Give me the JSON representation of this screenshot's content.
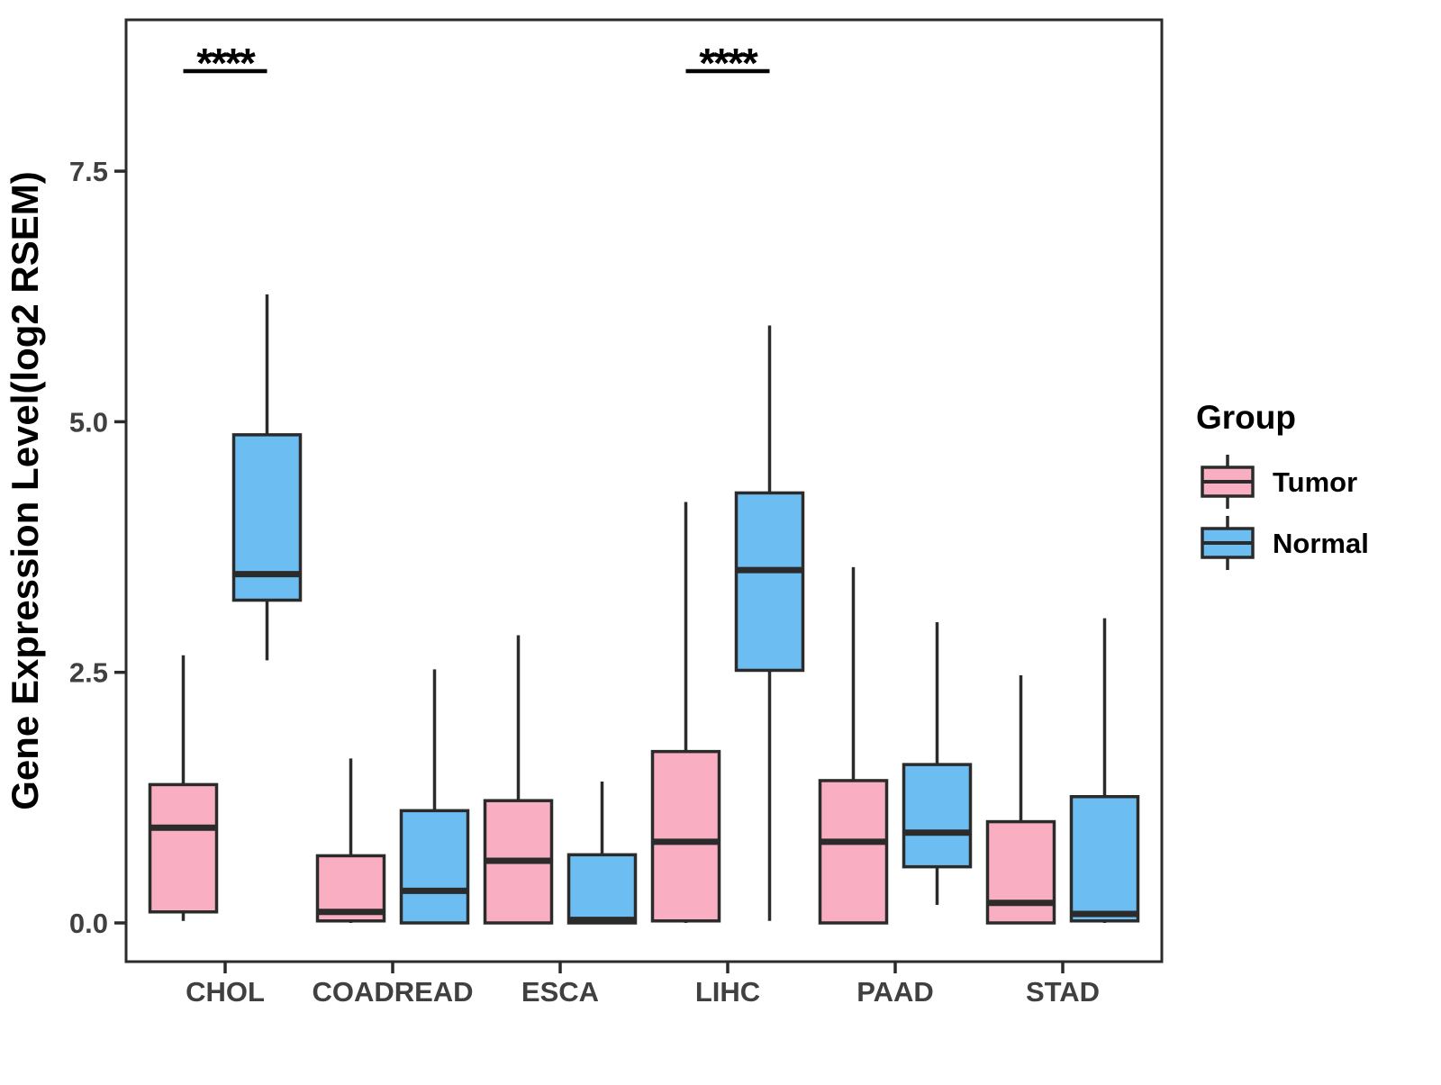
{
  "figure": {
    "background": "#ffffff"
  },
  "chart_data": {
    "type": "grouped_boxplot",
    "title": "",
    "xlabel": "",
    "ylabel": "Gene Expression Level(log2 RSEM)",
    "legend_title": "Group",
    "legend_position": "right",
    "grid": false,
    "ylim": [
      -0.4,
      9.0
    ],
    "y_ticks": [
      {
        "value": 0.0,
        "label": "0.0"
      },
      {
        "value": 2.5,
        "label": "2.5"
      },
      {
        "value": 5.0,
        "label": "5.0"
      },
      {
        "value": 7.5,
        "label": "7.5"
      }
    ],
    "categories": [
      "CHOL",
      "COADREAD",
      "ESCA",
      "LIHC",
      "PAAD",
      "STAD"
    ],
    "series": [
      {
        "name": "Tumor",
        "color": "#F9AEC1",
        "boxes": [
          {
            "category": "CHOL",
            "min": 0.02,
            "q1": 0.11,
            "median": 0.95,
            "q3": 1.38,
            "max": 2.67
          },
          {
            "category": "COADREAD",
            "min": 0.0,
            "q1": 0.02,
            "median": 0.11,
            "q3": 0.67,
            "max": 1.64
          },
          {
            "category": "ESCA",
            "min": 0.0,
            "q1": 0.0,
            "median": 0.62,
            "q3": 1.22,
            "max": 2.87
          },
          {
            "category": "LIHC",
            "min": 0.0,
            "q1": 0.02,
            "median": 0.81,
            "q3": 1.71,
            "max": 4.2
          },
          {
            "category": "PAAD",
            "min": 0.0,
            "q1": 0.0,
            "median": 0.81,
            "q3": 1.42,
            "max": 3.55
          },
          {
            "category": "STAD",
            "min": 0.0,
            "q1": 0.0,
            "median": 0.2,
            "q3": 1.01,
            "max": 2.47
          }
        ]
      },
      {
        "name": "Normal",
        "color": "#6CBDF2",
        "boxes": [
          {
            "category": "CHOL",
            "min": 2.62,
            "q1": 3.22,
            "median": 3.48,
            "q3": 4.87,
            "max": 6.27
          },
          {
            "category": "COADREAD",
            "min": 0.0,
            "q1": 0.0,
            "median": 0.32,
            "q3": 1.12,
            "max": 2.53
          },
          {
            "category": "ESCA",
            "min": 0.0,
            "q1": 0.0,
            "median": 0.03,
            "q3": 0.68,
            "max": 1.41
          },
          {
            "category": "LIHC",
            "min": 0.02,
            "q1": 2.52,
            "median": 3.52,
            "q3": 4.29,
            "max": 5.96
          },
          {
            "category": "PAAD",
            "min": 0.18,
            "q1": 0.56,
            "median": 0.9,
            "q3": 1.58,
            "max": 3.0
          },
          {
            "category": "STAD",
            "min": 0.0,
            "q1": 0.02,
            "median": 0.09,
            "q3": 1.26,
            "max": 3.04
          }
        ]
      }
    ],
    "annotations": [
      {
        "text": "****",
        "category": "CHOL",
        "underline": true
      },
      {
        "text": "****",
        "category": "LIHC",
        "underline": true
      }
    ],
    "style": {
      "ink": "#2b2b2b",
      "axis_text_color": "#404040",
      "annotation_color": "#000000"
    }
  }
}
